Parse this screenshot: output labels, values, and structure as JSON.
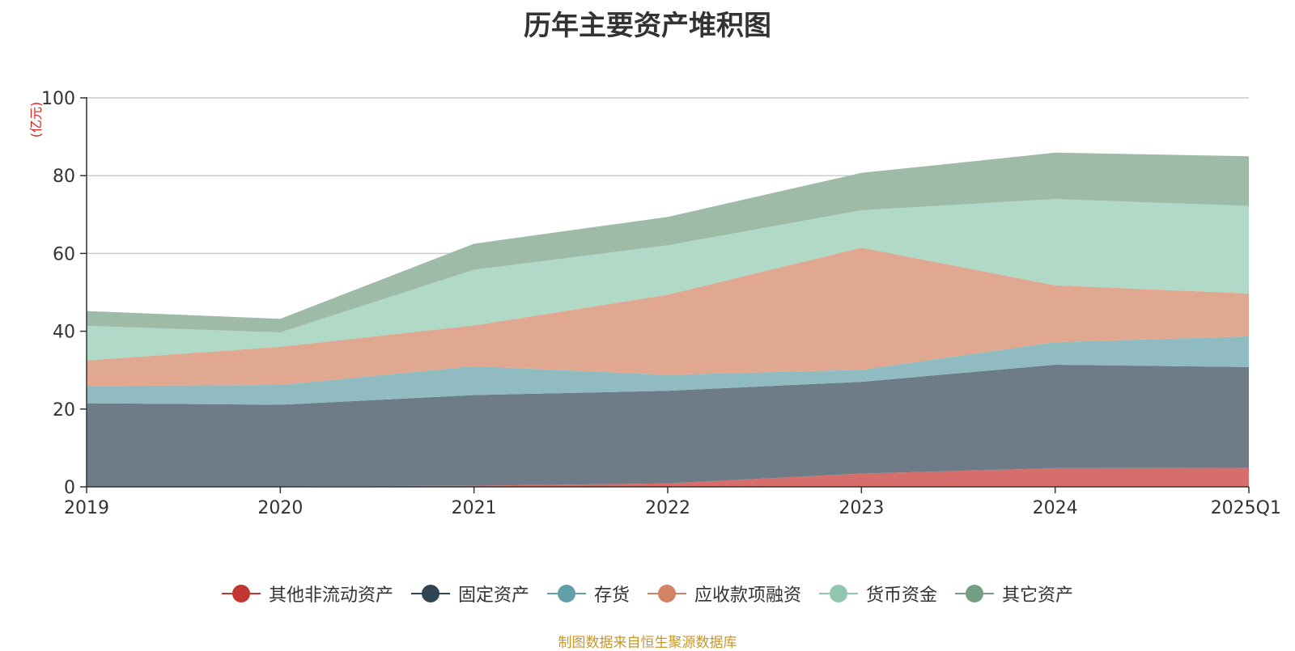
{
  "title": "历年主要资产堆积图",
  "source_note": "制图数据来自恒生聚源数据库",
  "unit_label": "(亿元)",
  "colors": {
    "unit_label": "#e02020",
    "source_note": "#c8962a"
  },
  "chart_data": {
    "type": "area",
    "stacked": true,
    "categories": [
      "2019",
      "2020",
      "2021",
      "2022",
      "2023",
      "2024",
      "2025Q1"
    ],
    "ylim": [
      0,
      100
    ],
    "yticks": [
      0,
      20,
      40,
      60,
      80,
      100
    ],
    "ylabel": "(亿元)",
    "xlabel": "",
    "grid": true,
    "legend_position": "bottom",
    "series": [
      {
        "name": "其他非流动资产",
        "color": "#c23531",
        "fill": "#d66e6b",
        "values": [
          0.1,
          0.1,
          0.3,
          0.9,
          3.4,
          4.8,
          4.9
        ]
      },
      {
        "name": "固定资产",
        "color": "#2f4554",
        "fill": "#6e7c88",
        "values": [
          21.4,
          21.0,
          23.3,
          23.8,
          23.6,
          26.6,
          25.9
        ]
      },
      {
        "name": "存货",
        "color": "#61a0a8",
        "fill": "#90bbc1",
        "values": [
          4.4,
          5.1,
          7.4,
          4.1,
          3.1,
          5.8,
          7.9
        ]
      },
      {
        "name": "应收款项融资",
        "color": "#d48265",
        "fill": "#e0a891",
        "values": [
          6.6,
          9.8,
          10.5,
          20.6,
          31.4,
          14.6,
          11.0
        ]
      },
      {
        "name": "货币资金",
        "color": "#91c7ae",
        "fill": "#b1d9c7",
        "values": [
          8.9,
          3.7,
          14.3,
          12.7,
          9.6,
          22.2,
          22.5
        ]
      },
      {
        "name": "其它资产",
        "color": "#749f83",
        "fill": "#9dbba7",
        "values": [
          3.8,
          3.5,
          6.7,
          7.3,
          9.6,
          11.9,
          12.8
        ]
      }
    ]
  }
}
